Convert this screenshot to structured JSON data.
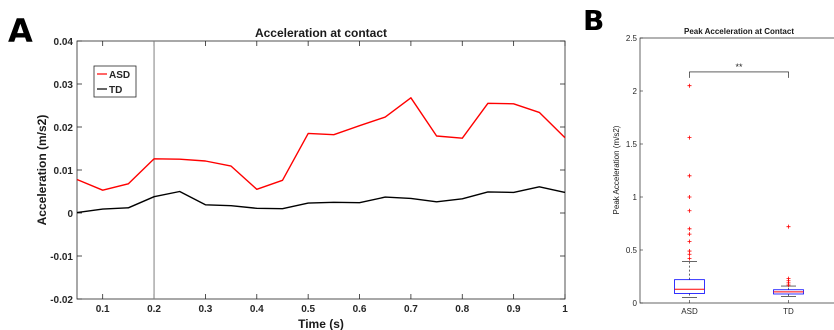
{
  "panels": {
    "a": "A",
    "b": "B"
  },
  "chart_data": [
    {
      "type": "line",
      "title": "Acceleration at contact",
      "xlabel": "Time (s)",
      "ylabel": "Acceleration (m/s2)",
      "xlim": [
        0.05,
        1.0
      ],
      "ylim": [
        -0.02,
        0.04
      ],
      "x_ticks": [
        "0.1",
        "0.2",
        "0.3",
        "0.4",
        "0.5",
        "0.6",
        "0.7",
        "0.8",
        "0.9",
        "1"
      ],
      "y_ticks": [
        "-0.02",
        "-0.01",
        "0",
        "0.01",
        "0.02",
        "0.03",
        "0.04"
      ],
      "x": [
        0.05,
        0.1,
        0.15,
        0.2,
        0.25,
        0.3,
        0.35,
        0.4,
        0.45,
        0.5,
        0.55,
        0.6,
        0.65,
        0.7,
        0.75,
        0.8,
        0.85,
        0.9,
        0.95,
        1.0
      ],
      "series": [
        {
          "name": "ASD",
          "color": "#ff0000",
          "values": [
            0.0078,
            0.0053,
            0.0068,
            0.0126,
            0.0125,
            0.0121,
            0.0109,
            0.0055,
            0.0076,
            0.0185,
            0.0182,
            0.0203,
            0.0223,
            0.0268,
            0.0179,
            0.0174,
            0.0255,
            0.0254,
            0.0234,
            0.0175
          ]
        },
        {
          "name": "TD",
          "color": "#000000",
          "values": [
            0.0001,
            0.0009,
            0.0012,
            0.0038,
            0.005,
            0.0019,
            0.0017,
            0.0011,
            0.001,
            0.0023,
            0.0025,
            0.0024,
            0.0037,
            0.0034,
            0.0026,
            0.0033,
            0.0049,
            0.0048,
            0.0061,
            0.0048
          ]
        }
      ],
      "reference_line_x": 0.2,
      "legend_position": "top-left",
      "grid": false
    },
    {
      "type": "box",
      "title": "Peak Acceleration at Contact",
      "xlabel": "",
      "ylabel": "Peak Acceleration (m/s2)",
      "categories": [
        "ASD",
        "TD"
      ],
      "ylim": [
        0,
        2.5
      ],
      "y_ticks": [
        "0",
        "0.5",
        "1",
        "1.5",
        "2",
        "2.5"
      ],
      "boxes": [
        {
          "category": "ASD",
          "q1": 0.09,
          "median": 0.13,
          "q3": 0.22,
          "whisker_low": 0.05,
          "whisker_high": 0.39,
          "outliers": [
            0.42,
            0.46,
            0.49,
            0.58,
            0.65,
            0.7,
            0.87,
            1.0,
            1.2,
            1.56,
            2.05
          ]
        },
        {
          "category": "TD",
          "q1": 0.085,
          "median": 0.105,
          "q3": 0.125,
          "whisker_low": 0.06,
          "whisker_high": 0.16,
          "outliers": [
            0.17,
            0.19,
            0.21,
            0.23,
            0.72
          ]
        }
      ],
      "box_color": "#0000ff",
      "median_color": "#ff0000",
      "outlier_color": "#ff0000",
      "significance": {
        "label": "**",
        "between": [
          "ASD",
          "TD"
        ],
        "level": 2.18
      },
      "grid": false
    }
  ]
}
